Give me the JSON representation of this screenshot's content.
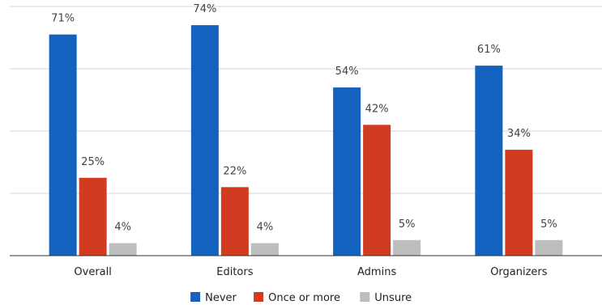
{
  "chart_data": {
    "type": "bar",
    "categories": [
      "Overall",
      "Editors",
      "Admins",
      "Organizers"
    ],
    "series": [
      {
        "name": "Never",
        "values": [
          71,
          74,
          54,
          61
        ],
        "labels": [
          "71%",
          "74%",
          "54%",
          "61%"
        ],
        "color": "#1462c0"
      },
      {
        "name": "Once or more",
        "values": [
          25,
          22,
          42,
          34
        ],
        "labels": [
          "25%",
          "22%",
          "42%",
          "34%"
        ],
        "color": "#d13b1f"
      },
      {
        "name": "Unsure",
        "values": [
          4,
          4,
          5,
          5
        ],
        "labels": [
          "4%",
          "4%",
          "5%",
          "5%"
        ],
        "color": "#bdbdbd"
      }
    ],
    "ylim": [
      0,
      80
    ],
    "grid": true,
    "legend_position": "bottom",
    "title": "",
    "xlabel": "",
    "ylabel": ""
  }
}
